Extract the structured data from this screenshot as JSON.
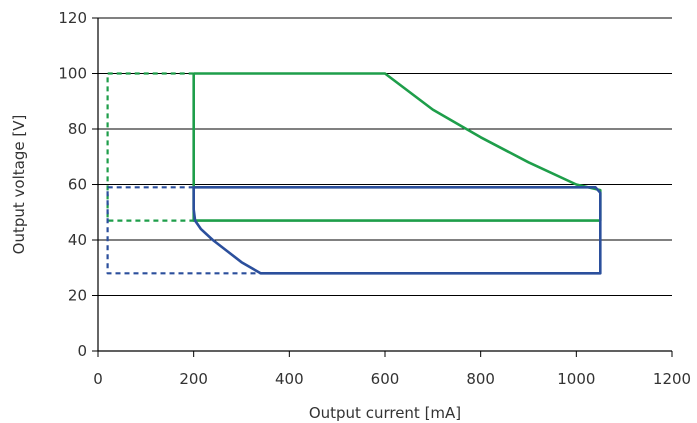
{
  "chart_data": {
    "type": "line",
    "xlabel": "Output current [mA]",
    "ylabel": "Output voltage [V]",
    "xlim": [
      0,
      1200
    ],
    "ylim": [
      0,
      120
    ],
    "xticks": [
      0,
      200,
      400,
      600,
      800,
      1000,
      1200
    ],
    "yticks": [
      0,
      20,
      40,
      60,
      80,
      100,
      120
    ],
    "grid": "horizontal",
    "colors": {
      "green": "#1e9e4a",
      "blue": "#2b4f9c"
    },
    "series": [
      {
        "color": "green",
        "style": "solid",
        "points": [
          [
            200,
            100
          ],
          [
            600,
            100
          ],
          [
            700,
            87
          ],
          [
            800,
            77
          ],
          [
            900,
            68
          ],
          [
            1000,
            60
          ],
          [
            1050,
            58
          ],
          [
            1050,
            47
          ],
          [
            200,
            47
          ],
          [
            200,
            100
          ]
        ]
      },
      {
        "color": "green",
        "style": "dashed",
        "points": [
          [
            200,
            100
          ],
          [
            20,
            100
          ],
          [
            20,
            47
          ],
          [
            200,
            47
          ]
        ]
      },
      {
        "color": "blue",
        "style": "solid",
        "points": [
          [
            200,
            59
          ],
          [
            1040,
            59
          ],
          [
            1050,
            57
          ],
          [
            1050,
            28
          ],
          [
            340,
            28
          ],
          [
            300,
            32
          ],
          [
            270,
            36
          ],
          [
            240,
            40
          ],
          [
            215,
            44
          ],
          [
            203,
            47
          ],
          [
            200,
            51
          ],
          [
            200,
            59
          ]
        ]
      },
      {
        "color": "blue",
        "style": "dashed",
        "points": [
          [
            200,
            59
          ],
          [
            20,
            59
          ],
          [
            20,
            28
          ],
          [
            340,
            28
          ]
        ]
      }
    ]
  }
}
